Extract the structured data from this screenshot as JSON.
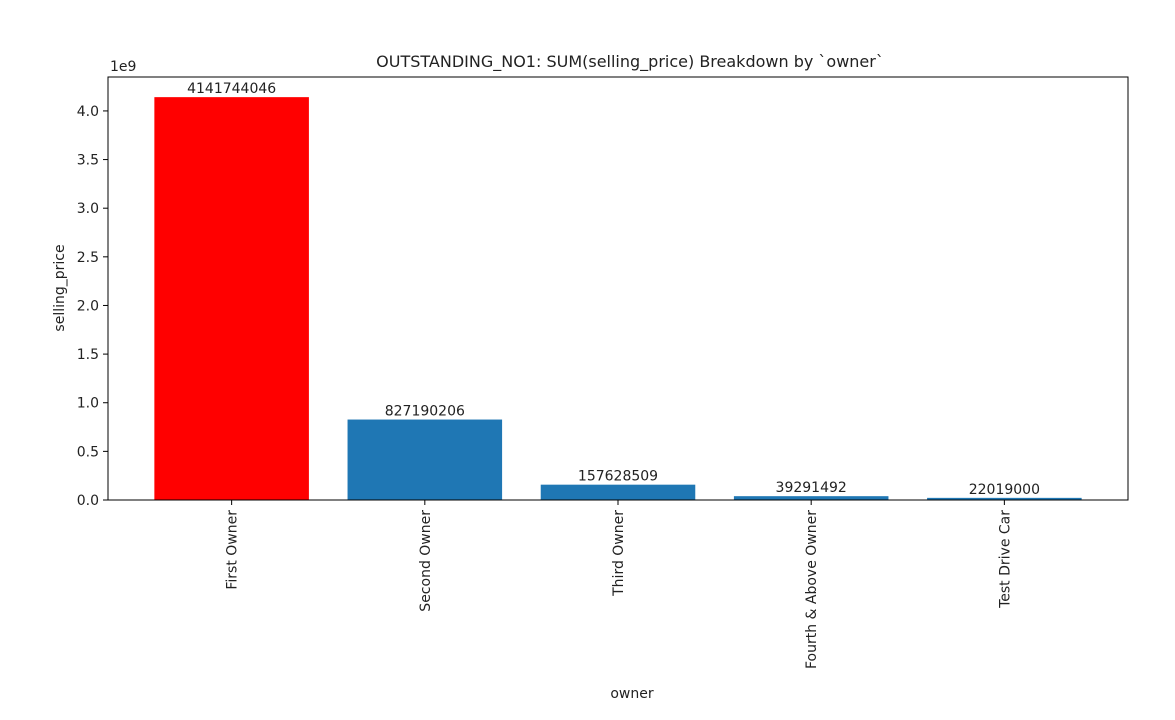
{
  "chart_data": {
    "type": "bar",
    "title": "OUTSTANDING_NO1: SUM(selling_price) Breakdown by `owner`",
    "xlabel": "owner",
    "ylabel": "selling_price",
    "y_offset_label": "1e9",
    "categories": [
      "First Owner",
      "Second Owner",
      "Third Owner",
      "Fourth & Above Owner",
      "Test Drive Car"
    ],
    "values": [
      4141744046,
      827190206,
      157628509,
      39291492,
      22019000
    ],
    "colors": [
      "#ff0000",
      "#1f77b4",
      "#1f77b4",
      "#1f77b4",
      "#1f77b4"
    ],
    "ylim": [
      0,
      4348831248
    ],
    "yticks": [
      {
        "value": 0,
        "label": "0.0"
      },
      {
        "value": 500000000,
        "label": "0.5"
      },
      {
        "value": 1000000000,
        "label": "1.0"
      },
      {
        "value": 1500000000,
        "label": "1.5"
      },
      {
        "value": 2000000000,
        "label": "2.0"
      },
      {
        "value": 2500000000,
        "label": "2.5"
      },
      {
        "value": 3000000000,
        "label": "3.0"
      },
      {
        "value": 3500000000,
        "label": "3.5"
      },
      {
        "value": 4000000000,
        "label": "4.0"
      }
    ],
    "grid": false
  }
}
